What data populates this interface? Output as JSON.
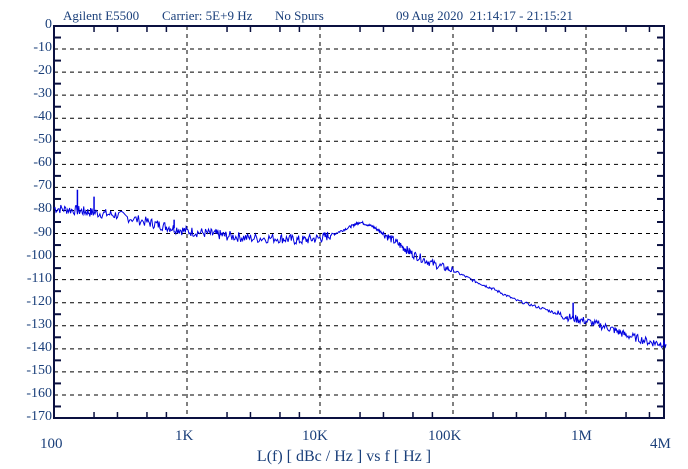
{
  "header": {
    "instrument": "Agilent E5500",
    "carrier": "Carrier: 5E+9 Hz",
    "spurs": "No Spurs",
    "datetime": "09 Aug 2020  21:14:17 - 21:15:21"
  },
  "axes": {
    "y_ticks": [
      "0",
      "-10",
      "-20",
      "-30",
      "-40",
      "-50",
      "-60",
      "-70",
      "-80",
      "-90",
      "-100",
      "-110",
      "-120",
      "-130",
      "-140",
      "-150",
      "-160",
      "-170"
    ],
    "x_ticks": [
      "100",
      "1K",
      "10K",
      "100K",
      "1M",
      "4M"
    ],
    "x_title": "L(f)  [ dBc / Hz ]  vs  f  [ Hz ]"
  },
  "colors": {
    "trace": "#0000e0",
    "axis": "#0a1040",
    "text": "#1a3f7a",
    "grid": "#000000"
  },
  "chart_data": {
    "type": "line",
    "title": "Agilent E5500  Carrier: 5E+9 Hz  No Spurs  09 Aug 2020 21:14:17 - 21:15:21",
    "xlabel": "f [ Hz ]",
    "ylabel": "L(f) [ dBc / Hz ]",
    "x_scale": "log",
    "xlim": [
      100,
      4000000
    ],
    "ylim": [
      -170,
      0
    ],
    "grid": true,
    "legend": null,
    "series": [
      {
        "name": "L(f)",
        "x": [
          100,
          150,
          200,
          300,
          500,
          700,
          1000,
          1500,
          2000,
          3000,
          5000,
          7000,
          10000,
          13000,
          17000,
          20000,
          25000,
          30000,
          40000,
          50000,
          70000,
          100000,
          150000,
          200000,
          300000,
          500000,
          700000,
          1000000,
          1500000,
          2000000,
          3000000,
          4000000
        ],
        "y": [
          -79,
          -80,
          -81,
          -82,
          -85,
          -87,
          -89,
          -90,
          -91,
          -92,
          -92,
          -93,
          -92,
          -90,
          -87,
          -85,
          -87,
          -90,
          -95,
          -99,
          -103,
          -106,
          -111,
          -114,
          -119,
          -123,
          -126,
          -128,
          -131,
          -134,
          -137,
          -138
        ]
      }
    ],
    "spurs_visible": [
      {
        "x": 150,
        "y": -71
      },
      {
        "x": 200,
        "y": -74
      },
      {
        "x": 800,
        "y": -84
      },
      {
        "x": 800000,
        "y": -120
      }
    ]
  }
}
